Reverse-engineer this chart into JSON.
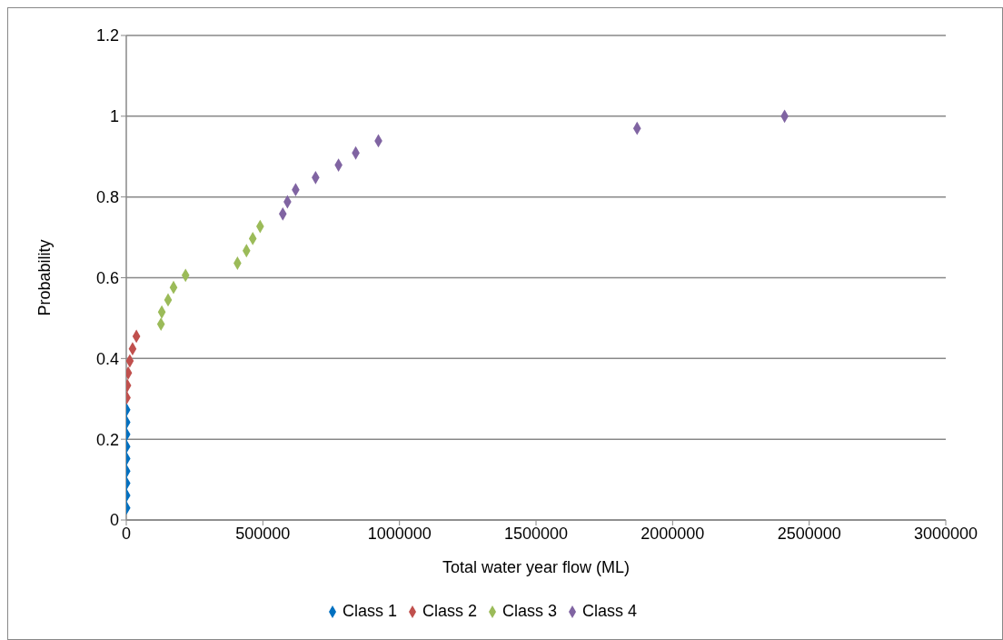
{
  "chart_data": {
    "type": "scatter",
    "xlabel": "Total water year flow (ML)",
    "ylabel": "Probability",
    "xlim": [
      0,
      3000000
    ],
    "xticks": [
      0,
      500000,
      1000000,
      1500000,
      2000000,
      2500000,
      3000000
    ],
    "ylim": [
      0,
      1.2
    ],
    "yticks": [
      0,
      0.2,
      0.4,
      0.6,
      0.8,
      1,
      1.2
    ],
    "grid": "y",
    "legend": "bottom",
    "marker": "diamond",
    "series": [
      {
        "name": "Class 1",
        "color": "#0070c0",
        "x": [
          1000,
          1000,
          1000,
          1000,
          1000,
          1000,
          1000,
          1000,
          1000
        ],
        "values": [
          0.03,
          0.061,
          0.091,
          0.121,
          0.152,
          0.182,
          0.212,
          0.242,
          0.273
        ]
      },
      {
        "name": "Class 2",
        "color": "#c0504d",
        "x": [
          2000,
          4000,
          7000,
          13000,
          23000,
          37000
        ],
        "values": [
          0.303,
          0.333,
          0.364,
          0.394,
          0.424,
          0.455
        ]
      },
      {
        "name": "Class 3",
        "color": "#9bbb59",
        "x": [
          127000,
          130000,
          153000,
          173000,
          217000,
          407000,
          440000,
          463000,
          490000
        ],
        "values": [
          0.485,
          0.515,
          0.545,
          0.576,
          0.606,
          0.636,
          0.667,
          0.697,
          0.727
        ]
      },
      {
        "name": "Class 4",
        "color": "#8064a2",
        "x": [
          573000,
          590000,
          620000,
          693000,
          777000,
          840000,
          923000,
          1870000,
          2410000
        ],
        "values": [
          0.758,
          0.788,
          0.818,
          0.848,
          0.879,
          0.909,
          0.939,
          0.97,
          1.0
        ]
      }
    ]
  }
}
